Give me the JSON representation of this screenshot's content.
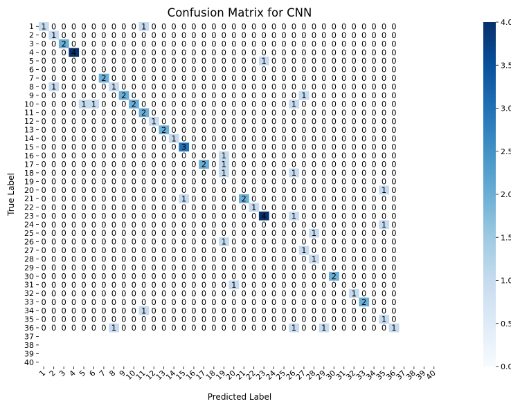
{
  "chart_data": {
    "type": "heatmap",
    "title": "Confusion Matrix for CNN",
    "xlabel": "Predicted Label",
    "ylabel": "True Label",
    "labels": [
      "1",
      "2",
      "3",
      "4",
      "5",
      "6",
      "7",
      "8",
      "9",
      "10",
      "11",
      "12",
      "13",
      "14",
      "15",
      "16",
      "17",
      "18",
      "19",
      "20",
      "21",
      "22",
      "23",
      "24",
      "25",
      "26",
      "27",
      "28",
      "29",
      "30",
      "31",
      "32",
      "33",
      "34",
      "35",
      "36",
      "37",
      "38",
      "39",
      "40"
    ],
    "annotated_rows": 36,
    "annotated_cols": 36,
    "colorbar": {
      "min": 0.0,
      "max": 4.0,
      "ticks": [
        "0.0",
        "0.5",
        "1.0",
        "1.5",
        "2.0",
        "2.5",
        "3.0",
        "3.5",
        "4.0"
      ]
    },
    "colormap": [
      "#f7fbff",
      "#deebf7",
      "#c6dbef",
      "#9ecae1",
      "#6baed6",
      "#4292c6",
      "#2171b5",
      "#08519c",
      "#08306b"
    ],
    "nonzero_cells": [
      [
        1,
        1,
        1
      ],
      [
        1,
        11,
        1
      ],
      [
        2,
        2,
        1
      ],
      [
        3,
        3,
        2
      ],
      [
        4,
        4,
        4
      ],
      [
        5,
        23,
        1
      ],
      [
        7,
        7,
        2
      ],
      [
        8,
        2,
        1
      ],
      [
        8,
        8,
        1
      ],
      [
        9,
        9,
        2
      ],
      [
        9,
        27,
        1
      ],
      [
        10,
        5,
        1
      ],
      [
        10,
        6,
        1
      ],
      [
        10,
        10,
        2
      ],
      [
        10,
        26,
        1
      ],
      [
        11,
        11,
        2
      ],
      [
        12,
        12,
        1
      ],
      [
        13,
        13,
        2
      ],
      [
        14,
        14,
        1
      ],
      [
        15,
        15,
        3
      ],
      [
        16,
        19,
        1
      ],
      [
        17,
        17,
        2
      ],
      [
        17,
        19,
        1
      ],
      [
        18,
        19,
        1
      ],
      [
        18,
        26,
        1
      ],
      [
        20,
        35,
        1
      ],
      [
        21,
        15,
        1
      ],
      [
        21,
        21,
        2
      ],
      [
        22,
        22,
        1
      ],
      [
        23,
        23,
        4
      ],
      [
        23,
        26,
        1
      ],
      [
        24,
        35,
        1
      ],
      [
        25,
        28,
        1
      ],
      [
        26,
        19,
        1
      ],
      [
        27,
        27,
        1
      ],
      [
        28,
        28,
        1
      ],
      [
        30,
        30,
        2
      ],
      [
        31,
        20,
        1
      ],
      [
        32,
        32,
        1
      ],
      [
        33,
        33,
        2
      ],
      [
        34,
        11,
        1
      ],
      [
        35,
        35,
        1
      ],
      [
        36,
        8,
        1
      ],
      [
        36,
        26,
        1
      ],
      [
        36,
        29,
        1
      ],
      [
        36,
        36,
        1
      ]
    ]
  }
}
